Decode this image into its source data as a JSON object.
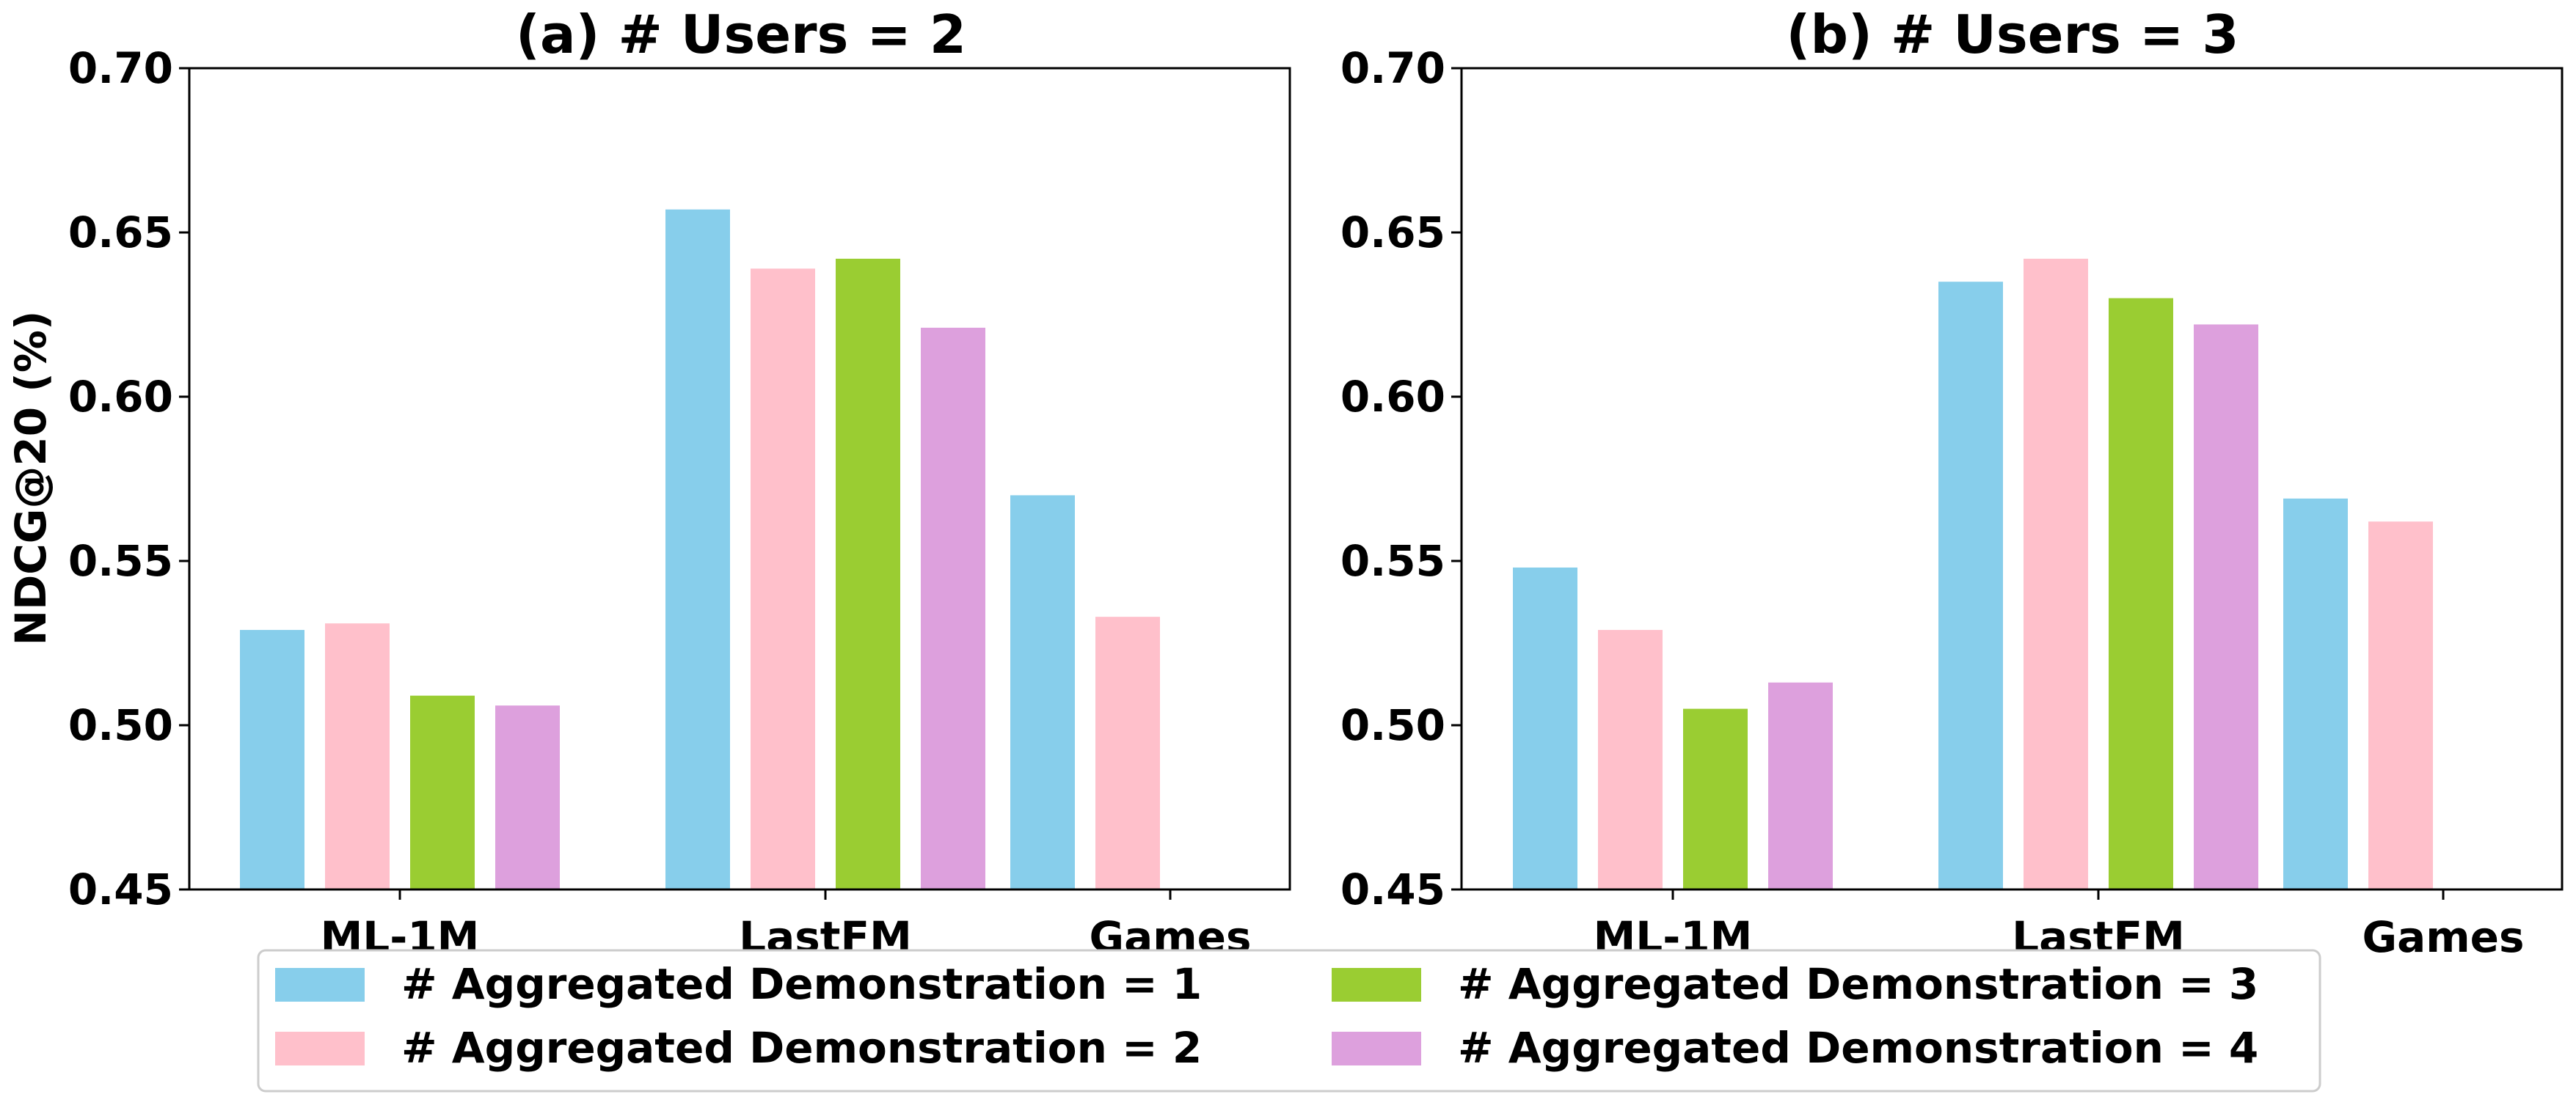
{
  "chart_data": {
    "type": "bar",
    "ylabel": "NDCG@20 (%)",
    "ylim": [
      0.45,
      0.7
    ],
    "yticks": [
      "0.45",
      "0.50",
      "0.55",
      "0.60",
      "0.65",
      "0.70"
    ],
    "categories": [
      "ML-1M",
      "LastFM",
      "Games"
    ],
    "series": [
      {
        "name": "# Aggregated Demonstration = 1",
        "color": "#87CEEB"
      },
      {
        "name": "# Aggregated Demonstration = 2",
        "color": "#FFC0CB"
      },
      {
        "name": "# Aggregated Demonstration = 3",
        "color": "#9ACD32"
      },
      {
        "name": "# Aggregated Demonstration = 4",
        "color": "#DDA0DD"
      }
    ],
    "panels": [
      {
        "title": "(a) # Users = 2",
        "values": [
          [
            0.529,
            0.657,
            0.57
          ],
          [
            0.531,
            0.639,
            0.533
          ],
          [
            0.509,
            0.642,
            null
          ],
          [
            0.506,
            0.621,
            null
          ]
        ]
      },
      {
        "title": "(b) # Users = 3",
        "values": [
          [
            0.548,
            0.635,
            0.569
          ],
          [
            0.529,
            0.642,
            0.562
          ],
          [
            0.505,
            0.63,
            null
          ],
          [
            0.513,
            0.622,
            null
          ]
        ]
      }
    ],
    "legend_position": "bottom-center"
  }
}
